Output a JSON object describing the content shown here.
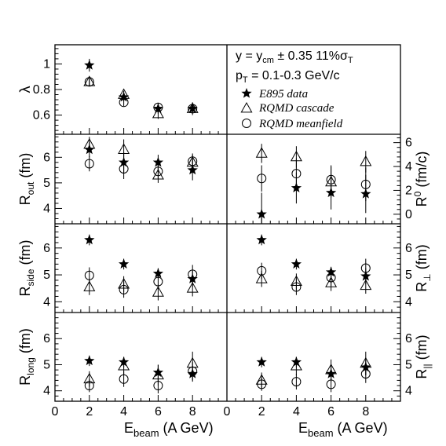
{
  "figure": {
    "legend": {
      "line1": "y = y",
      "line1_sub": "cm",
      "line1_rest": " ± 0.35   11%σ",
      "line1_sub2": "T",
      "line2": "p",
      "line2_sub": "T",
      "line2_rest": " = 0.1-0.3 GeV/c",
      "entries": [
        "E895 data",
        "RQMD cascade",
        "RQMD meanfield"
      ]
    },
    "xlabel_left": {
      "main": "E",
      "sub": "beam",
      "rest": " (A GeV)"
    },
    "xlabel_right": {
      "main": "E",
      "sub": "beam",
      "rest": " (A GeV)"
    }
  },
  "chart_data": [
    {
      "type": "scatter",
      "panel": "lambda",
      "ylabel": "λ",
      "ylim": [
        0.45,
        1.15
      ],
      "yticks": [
        "0.6",
        "0.8",
        "1"
      ],
      "x": [
        2,
        4,
        6,
        8
      ],
      "series": [
        {
          "name": "E895 data",
          "marker": "star",
          "values": [
            0.99,
            0.74,
            0.65,
            0.65
          ],
          "err": [
            0.05,
            0.03,
            0.04,
            0.05
          ]
        },
        {
          "name": "RQMD cascade",
          "marker": "triangle",
          "values": [
            0.86,
            0.76,
            0.61,
            0.65
          ],
          "err": [
            0.03,
            0.03,
            0.04,
            0.03
          ]
        },
        {
          "name": "RQMD meanfield",
          "marker": "circle",
          "values": [
            0.86,
            0.7,
            0.66,
            0.65
          ],
          "err": [
            0.03,
            0.03,
            0.03,
            0.03
          ]
        }
      ]
    },
    {
      "type": "scatter",
      "panel": "Rout",
      "ylabel": "R",
      "ylabel_sub": "out",
      "ylabel_rest": " (fm)",
      "ylim": [
        3.4,
        6.9
      ],
      "yticks": [
        "4",
        "5",
        "6"
      ],
      "x": [
        2,
        4,
        6,
        8
      ],
      "series": [
        {
          "name": "E895 data",
          "values": [
            6.3,
            5.8,
            5.8,
            5.5
          ],
          "err": [
            0.3,
            0.4,
            0.3,
            0.4
          ]
        },
        {
          "name": "RQMD cascade",
          "values": [
            6.5,
            6.3,
            5.3,
            5.8
          ],
          "err": [
            0.3,
            0.4,
            0.3,
            0.3
          ]
        },
        {
          "name": "RQMD meanfield",
          "values": [
            5.75,
            5.55,
            5.45,
            5.85
          ],
          "err": [
            0.3,
            0.4,
            0.3,
            0.3
          ]
        }
      ]
    },
    {
      "type": "scatter",
      "panel": "R0",
      "ylabel": "R",
      "ylabel_sup": "0",
      "ylabel_rest": " (fm/c)",
      "ylim": [
        -0.8,
        6.7
      ],
      "yticks": [
        "0",
        "2",
        "4",
        "6"
      ],
      "x": [
        2,
        4,
        6,
        8
      ],
      "series": [
        {
          "name": "E895 data",
          "values": [
            0,
            2.2,
            1.8,
            1.7
          ],
          "err": [
            1.8,
            1.3,
            1.4,
            1.6
          ]
        },
        {
          "name": "RQMD cascade",
          "values": [
            5.1,
            4.8,
            2.7,
            4.4
          ],
          "err": [
            0.8,
            0.9,
            1.3,
            0.9
          ]
        },
        {
          "name": "RQMD meanfield",
          "values": [
            3.0,
            3.4,
            2.9,
            2.5
          ],
          "err": [
            1.1,
            1.3,
            1.2,
            1.4
          ]
        }
      ]
    },
    {
      "type": "scatter",
      "panel": "Rside",
      "ylabel": "R",
      "ylabel_sub": "side",
      "ylabel_rest": " (fm)",
      "ylim": [
        3.6,
        6.9
      ],
      "yticks": [
        "4",
        "5",
        "6"
      ],
      "x": [
        2,
        4,
        6,
        8
      ],
      "series": [
        {
          "name": "E895 data",
          "values": [
            6.3,
            5.4,
            5.05,
            4.85
          ],
          "err": [
            0.2,
            0.2,
            0.2,
            0.3
          ]
        },
        {
          "name": "RQMD cascade",
          "values": [
            4.55,
            4.65,
            4.35,
            4.5
          ],
          "err": [
            0.3,
            0.3,
            0.3,
            0.3
          ]
        },
        {
          "name": "RQMD meanfield",
          "values": [
            4.98,
            4.45,
            4.75,
            5.02
          ],
          "err": [
            0.3,
            0.3,
            0.3,
            0.35
          ]
        }
      ]
    },
    {
      "type": "scatter",
      "panel": "Rperp",
      "ylabel": "R",
      "ylabel_sub": "⊥",
      "ylabel_rest": " (fm)",
      "ylim": [
        3.6,
        6.9
      ],
      "yticks": [
        "4",
        "5",
        "6"
      ],
      "x": [
        2,
        4,
        6,
        8
      ],
      "series": [
        {
          "name": "E895 data",
          "values": [
            6.3,
            5.4,
            5.1,
            4.95
          ],
          "err": [
            0.2,
            0.2,
            0.2,
            0.3
          ]
        },
        {
          "name": "RQMD cascade",
          "values": [
            4.85,
            4.75,
            4.7,
            4.6
          ],
          "err": [
            0.3,
            0.3,
            0.3,
            0.3
          ]
        },
        {
          "name": "RQMD meanfield",
          "values": [
            5.15,
            4.55,
            4.9,
            5.25
          ],
          "err": [
            0.3,
            0.3,
            0.3,
            0.35
          ]
        }
      ]
    },
    {
      "type": "scatter",
      "panel": "Rlong",
      "ylabel": "R",
      "ylabel_sub": "long",
      "ylabel_rest": " (fm)",
      "ylim": [
        3.6,
        7.0
      ],
      "yticks": [
        "4",
        "5",
        "6"
      ],
      "x": [
        2,
        4,
        6,
        8
      ],
      "series": [
        {
          "name": "E895 data",
          "values": [
            5.15,
            5.1,
            4.7,
            4.65
          ],
          "err": [
            0.2,
            0.2,
            0.3,
            0.3
          ]
        },
        {
          "name": "RQMD cascade",
          "values": [
            4.45,
            4.95,
            4.6,
            5.05
          ],
          "err": [
            0.3,
            0.35,
            0.4,
            0.45
          ]
        },
        {
          "name": "RQMD meanfield",
          "values": [
            4.2,
            4.45,
            4.2,
            4.75
          ],
          "err": [
            0.25,
            0.3,
            0.3,
            0.35
          ]
        }
      ]
    },
    {
      "type": "scatter",
      "panel": "Rpar",
      "ylabel": "R",
      "ylabel_sub": "||",
      "ylabel_rest": " (fm)",
      "ylim": [
        3.6,
        7.0
      ],
      "yticks": [
        "4",
        "5",
        "6"
      ],
      "x": [
        2,
        4,
        6,
        8
      ],
      "series": [
        {
          "name": "E895 data",
          "values": [
            5.1,
            5.1,
            4.65,
            4.9
          ],
          "err": [
            0.2,
            0.2,
            0.3,
            0.3
          ]
        },
        {
          "name": "RQMD cascade",
          "values": [
            4.4,
            4.95,
            4.8,
            5.05
          ],
          "err": [
            0.3,
            0.35,
            0.4,
            0.45
          ]
        },
        {
          "name": "RQMD meanfield",
          "values": [
            4.25,
            4.35,
            4.25,
            4.65
          ],
          "err": [
            0.25,
            0.3,
            0.3,
            0.35
          ]
        }
      ]
    }
  ],
  "x_axis": {
    "xlim": [
      0,
      10
    ],
    "tick_labels_left": [
      "0",
      "2",
      "4",
      "6",
      "8"
    ],
    "tick_labels_right": [
      "0",
      "2",
      "4",
      "6",
      "8"
    ]
  }
}
